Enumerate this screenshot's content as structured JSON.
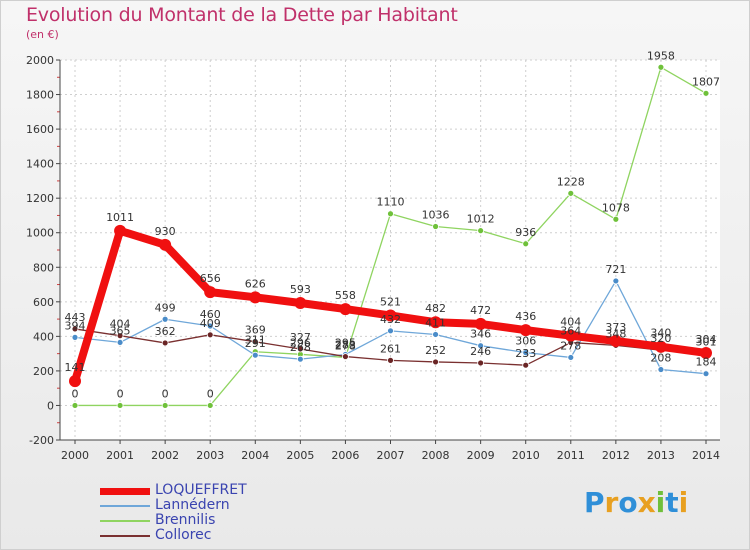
{
  "header": {
    "title": "Evolution du Montant de la Dette par Habitant",
    "subtitle": "(en €)"
  },
  "brand": {
    "letters": [
      "P",
      "r",
      "o",
      "x",
      "i",
      "t",
      "i"
    ],
    "colors": [
      "#2f8fd8",
      "#e8a020",
      "#2f8fd8",
      "#e8a020",
      "#6fbf3a",
      "#2f8fd8",
      "#e8a020"
    ]
  },
  "chart_data": {
    "type": "line",
    "x": [
      "2000",
      "2001",
      "2002",
      "2003",
      "2004",
      "2005",
      "2006",
      "2007",
      "2008",
      "2009",
      "2010",
      "2011",
      "2012",
      "2013",
      "2014"
    ],
    "ylim": [
      -200,
      2000
    ],
    "yticks": [
      -200,
      0,
      200,
      400,
      600,
      800,
      1000,
      1200,
      1400,
      1600,
      1800,
      2000
    ],
    "grid": true,
    "legend": "bottom-left",
    "series": [
      {
        "name": "Brennilis",
        "color": "#8fd460",
        "marker": "#6fc13a",
        "width": 1.3,
        "values": [
          0,
          0,
          0,
          0,
          311,
          296,
          278,
          1110,
          1036,
          1012,
          936,
          1228,
          1078,
          1958,
          1807
        ],
        "labels": [
          "0",
          "0",
          "0",
          "0",
          "311",
          "296",
          "278",
          "1110",
          "1036",
          "1012",
          "936",
          "1228",
          "1078",
          "1958",
          "1807"
        ]
      },
      {
        "name": "Lannédern",
        "color": "#6fa7d9",
        "marker": "#4a8cc9",
        "width": 1.3,
        "values": [
          394,
          365,
          499,
          460,
          291,
          268,
          295,
          432,
          411,
          346,
          306,
          278,
          721,
          208,
          184
        ],
        "labels": [
          "394",
          "365",
          "499",
          "460",
          "291",
          "268",
          "295",
          "432",
          "411",
          "346",
          "306",
          "278",
          "721",
          "208",
          "184"
        ]
      },
      {
        "name": "Collorec",
        "color": "#7a3030",
        "marker": "#6a2525",
        "width": 1.3,
        "values": [
          443,
          404,
          362,
          409,
          369,
          327,
          283,
          261,
          252,
          246,
          233,
          364,
          348,
          320,
          301
        ],
        "labels": [
          "443",
          "404",
          "362",
          "409",
          "369",
          "327",
          "283",
          "261",
          "252",
          "246",
          "233",
          "364",
          "348",
          "320",
          "301"
        ]
      },
      {
        "name": "LOQUEFFRET",
        "color": "#f01010",
        "marker": "#f01010",
        "width": 8,
        "values": [
          141,
          1011,
          930,
          656,
          626,
          593,
          558,
          521,
          482,
          472,
          436,
          404,
          373,
          340,
          304
        ],
        "labels": [
          "141",
          "1011",
          "930",
          "656",
          "626",
          "593",
          "558",
          "521",
          "482",
          "472",
          "436",
          "404",
          "373",
          "340",
          "304"
        ]
      }
    ]
  },
  "legend": {
    "items": [
      {
        "label": "LOQUEFFRET",
        "color": "#f01010",
        "height": 7
      },
      {
        "label": "Lannédern",
        "color": "#6fa7d9",
        "height": 2
      },
      {
        "label": "Brennilis",
        "color": "#8fd460",
        "height": 2
      },
      {
        "label": "Collorec",
        "color": "#7a3030",
        "height": 2
      }
    ]
  }
}
